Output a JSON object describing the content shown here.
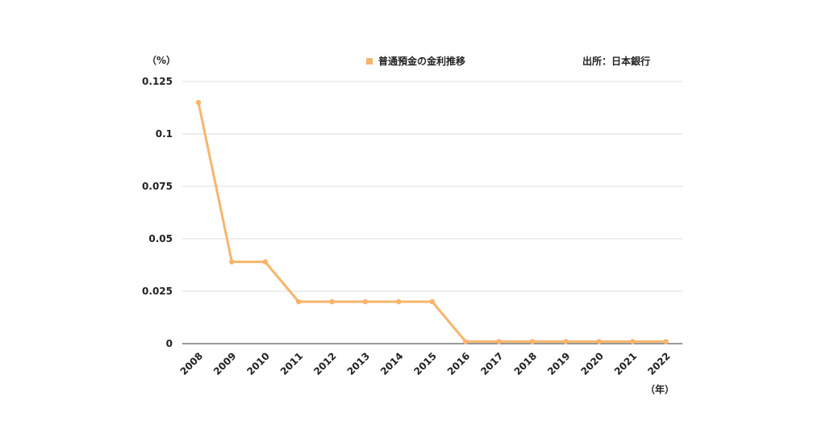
{
  "chart_data": {
    "type": "line",
    "title": "",
    "ylabel": "（%）",
    "xlabel": "（年）",
    "source": "出所：日本銀行",
    "ylim": [
      0,
      0.125
    ],
    "yticks": [
      "0",
      "0.025",
      "0.05",
      "0.075",
      "0.1",
      "0.125"
    ],
    "ytick_values": [
      0,
      0.025,
      0.05,
      0.075,
      0.1,
      0.125
    ],
    "grid": true,
    "legend_position": "top-center",
    "categories": [
      "2008",
      "2009",
      "2010",
      "2011",
      "2012",
      "2013",
      "2014",
      "2015",
      "2016",
      "2017",
      "2018",
      "2019",
      "2020",
      "2021",
      "2022"
    ],
    "series": [
      {
        "name": "普通預金の金利推移",
        "color": "#f7b56b",
        "values": [
          0.115,
          0.039,
          0.039,
          0.02,
          0.02,
          0.02,
          0.02,
          0.02,
          0.001,
          0.001,
          0.001,
          0.001,
          0.001,
          0.001,
          0.001
        ]
      }
    ]
  }
}
